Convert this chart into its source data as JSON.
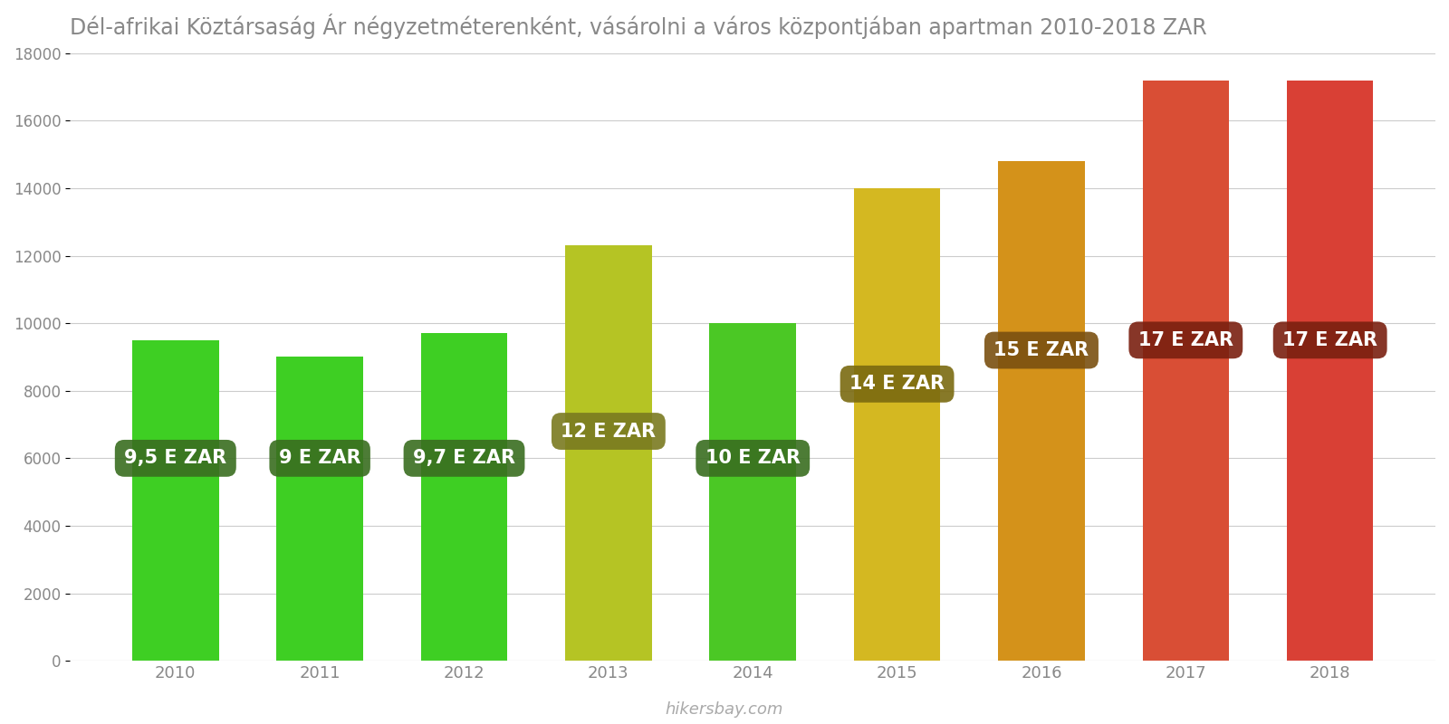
{
  "title": "Dél-afrikai Köztársaság Ár négyzetméterenként, vásárolni a város központjában apartman 2010-2018 ZAR",
  "years": [
    2010,
    2011,
    2012,
    2013,
    2014,
    2015,
    2016,
    2017,
    2018
  ],
  "values": [
    9500,
    9000,
    9700,
    12300,
    10000,
    14000,
    14800,
    17200,
    17200
  ],
  "labels": [
    "9,5 E ZAR",
    "9 E ZAR",
    "9,7 E ZAR",
    "12 E ZAR",
    "10 E ZAR",
    "14 E ZAR",
    "15 E ZAR",
    "17 E ZAR",
    "17 E ZAR"
  ],
  "bar_colors": [
    "#3ecf23",
    "#3ecf23",
    "#3ecf23",
    "#b5c424",
    "#4bc825",
    "#d4b821",
    "#d4921a",
    "#d94e35",
    "#d94035"
  ],
  "label_bg_colors": [
    "#3a6e20",
    "#3a6e20",
    "#3a6e20",
    "#7a7a20",
    "#3a6e20",
    "#7a6a10",
    "#7a5010",
    "#7a2010",
    "#7a2010"
  ],
  "ylim": [
    0,
    18000
  ],
  "yticks": [
    0,
    2000,
    4000,
    6000,
    8000,
    10000,
    12000,
    14000,
    16000,
    18000
  ],
  "background_color": "#ffffff",
  "label_text_color": "#ffffff",
  "watermark": "hikersbay.com",
  "title_color": "#888888"
}
